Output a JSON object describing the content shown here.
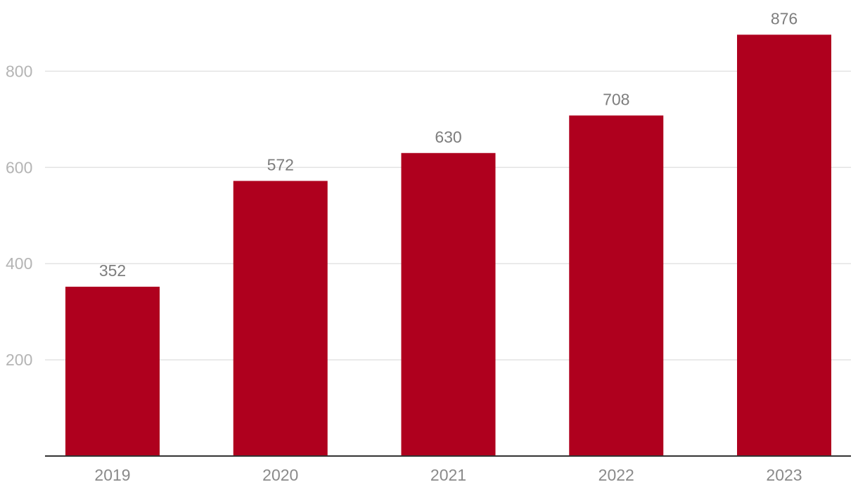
{
  "chart_data": {
    "type": "bar",
    "categories": [
      "2019",
      "2020",
      "2021",
      "2022",
      "2023"
    ],
    "values": [
      352,
      572,
      630,
      708,
      876
    ],
    "data_labels": [
      "352",
      "572",
      "630",
      "708",
      "876"
    ],
    "yticks": [
      200,
      400,
      600,
      800
    ],
    "ytick_labels": [
      "200",
      "400",
      "600",
      "800"
    ],
    "ylim": [
      0,
      876
    ],
    "title": "",
    "xlabel": "",
    "ylabel": "",
    "grid": true,
    "legend": "none",
    "colors": {
      "bar": "#af001e",
      "grid": "#e3e3e3",
      "axis": "#333333",
      "tick_text": "#b4b4b4",
      "category_text": "#8a8a8a",
      "label_text": "#7d7d7d"
    }
  }
}
